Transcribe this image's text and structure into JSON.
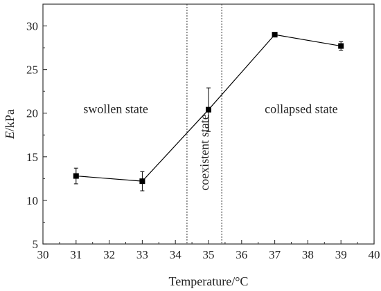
{
  "chart_data": {
    "type": "line",
    "title": "",
    "xlabel": "Temperature/°C",
    "ylabel_italic": "E",
    "ylabel_rest": "/kPa",
    "xlim": [
      30,
      40
    ],
    "ylim": [
      5,
      32.5
    ],
    "xticks": [
      30,
      31,
      32,
      33,
      34,
      35,
      36,
      37,
      38,
      39,
      40
    ],
    "yticks": [
      5,
      10,
      15,
      20,
      25,
      30
    ],
    "grid": false,
    "legend": "none",
    "series": [
      {
        "x": [
          31,
          33,
          35,
          37,
          39
        ],
        "y": [
          12.8,
          12.2,
          20.4,
          29.0,
          27.7
        ],
        "yerr": [
          0.9,
          1.1,
          2.5,
          0.2,
          0.5
        ],
        "marker": "square",
        "color": "#000000"
      }
    ],
    "vlines": [
      34.35,
      35.4
    ],
    "annotations": [
      {
        "text": "swollen state",
        "x": 32.2,
        "y": 20.0,
        "rotation": 0
      },
      {
        "text": "collapsed state",
        "x": 37.8,
        "y": 20.0,
        "rotation": 0
      },
      {
        "text": "coexistent state",
        "x": 34.87,
        "y": 15.5,
        "rotation": -90
      }
    ]
  }
}
